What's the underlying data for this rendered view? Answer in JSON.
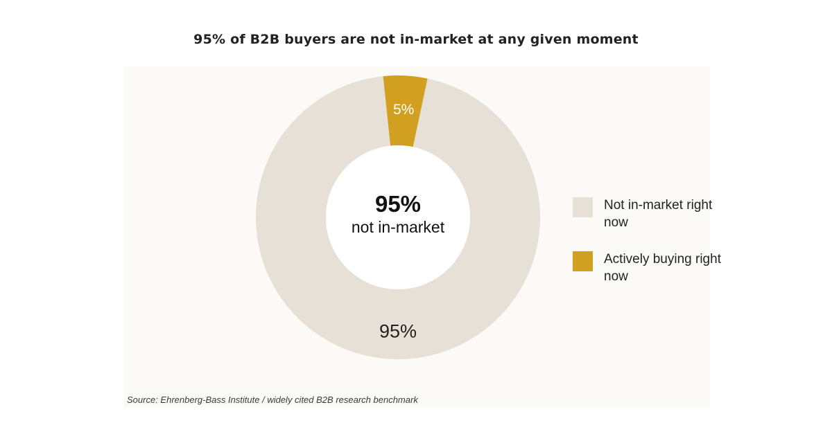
{
  "chart_data": {
    "type": "pie",
    "title": "95% of B2B buyers are not in-market at any given moment",
    "categories": [
      "Not in-market right now",
      "Actively buying right now"
    ],
    "values": [
      95,
      5
    ],
    "slice_labels": [
      "95%",
      "5%"
    ],
    "colors": [
      "#e6e0d6",
      "#d1a021"
    ],
    "center_value": "95%",
    "center_label": "not in-market",
    "legend_position": "right",
    "legend": [
      {
        "label": "Not in-market right now",
        "color": "#e6e0d6"
      },
      {
        "label": "Actively buying right now",
        "color": "#d1a021"
      }
    ],
    "source": "Source: Ehrenberg-Bass Institute / widely cited B2B research benchmark"
  }
}
